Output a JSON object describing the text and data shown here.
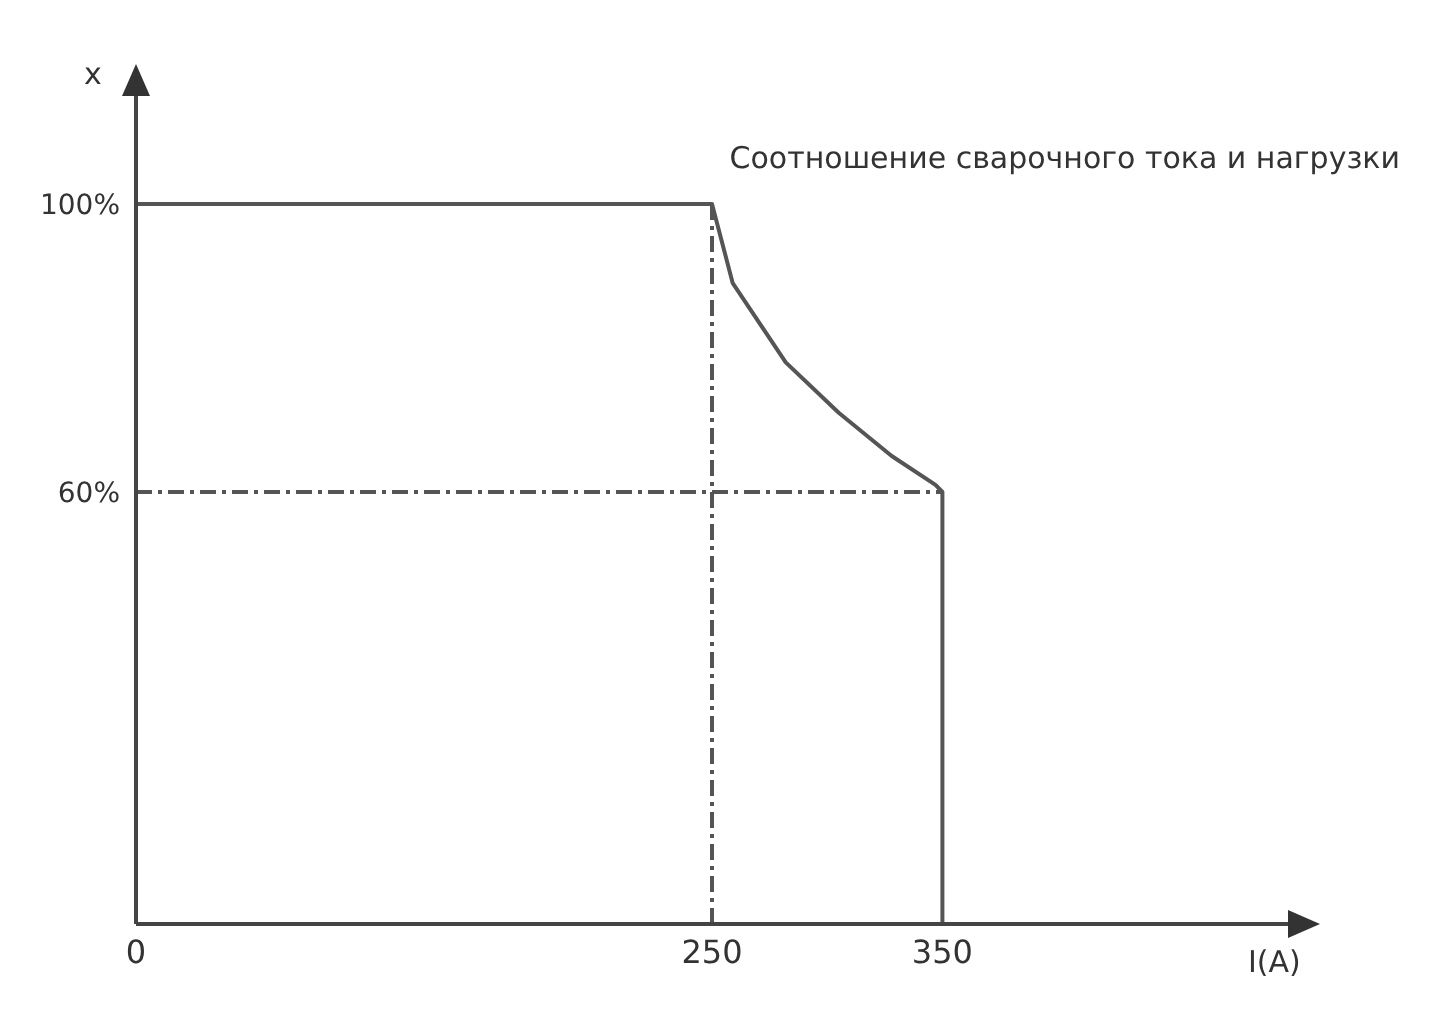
{
  "chart_data": {
    "type": "line",
    "title": "Соотношение сварочного тока и нагрузки",
    "xlabel": "I(A)",
    "ylabel": "x",
    "xlim": [
      0,
      500
    ],
    "xticks": [
      0,
      250,
      350
    ],
    "ylim": [
      0,
      115
    ],
    "yticks": [
      {
        "value": 60,
        "label": "60%"
      },
      {
        "value": 100,
        "label": "100%"
      }
    ],
    "series": [
      {
        "color": "#555555",
        "x": [
          0,
          250,
          259,
          282,
          305,
          328,
          347,
          350,
          350
        ],
        "values": [
          100,
          100,
          89,
          78,
          71,
          65,
          61,
          60,
          0
        ]
      }
    ],
    "ref_lines": [
      {
        "axis": "x",
        "value": 250,
        "line_style": "dashed",
        "color": "#555555"
      },
      {
        "axis": "y",
        "value": 60,
        "line_style": "dashed",
        "color": "#555555"
      }
    ],
    "marker": "none",
    "line_style": "solid"
  }
}
